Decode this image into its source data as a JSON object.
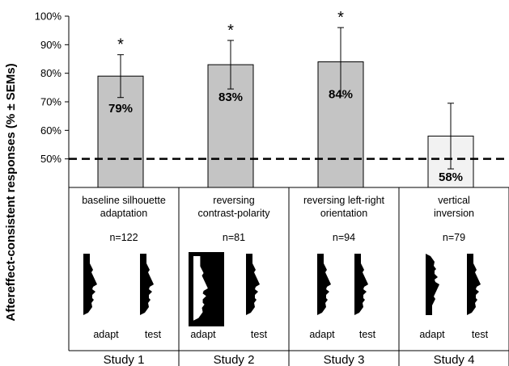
{
  "chart_data": {
    "type": "bar",
    "ylabel": "Aftereffect-consistent responses (% ± SEMs)",
    "ylim": [
      40,
      100
    ],
    "yticks": [
      "50%",
      "60%",
      "70%",
      "80%",
      "90%",
      "100%"
    ],
    "reference_line": 50,
    "categories": [
      "Study 1",
      "Study 2",
      "Study 3",
      "Study 4"
    ],
    "values": [
      79,
      83,
      84,
      58
    ],
    "sem": [
      7.5,
      8.5,
      12,
      11.5
    ],
    "value_labels": [
      "79%",
      "83%",
      "84%",
      "58%"
    ],
    "significance": [
      "*",
      "*",
      "*",
      ""
    ],
    "bar_colors": [
      "#c4c4c4",
      "#c4c4c4",
      "#c4c4c4",
      "#f2f2f2"
    ],
    "conditions": [
      {
        "line1": "baseline silhouette",
        "line2": "adaptation",
        "n": "n=122"
      },
      {
        "line1": "reversing",
        "line2": "contrast-polarity",
        "n": "n=81"
      },
      {
        "line1": "reversing left-right",
        "line2": "orientation",
        "n": "n=94"
      },
      {
        "line1": "vertical",
        "line2": "inversion",
        "n": "n=79"
      }
    ],
    "stimulus_labels": {
      "adapt": "adapt",
      "test": "test"
    }
  }
}
